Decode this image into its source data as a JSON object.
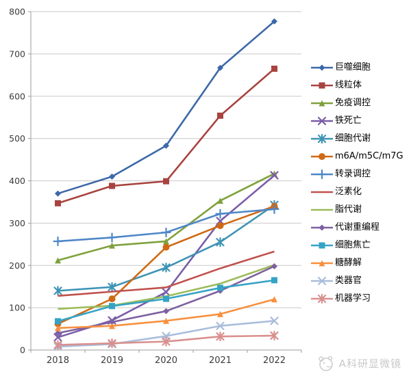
{
  "chart_data": {
    "type": "line",
    "categories": [
      "2018",
      "2019",
      "2020",
      "2021",
      "2022"
    ],
    "series": [
      {
        "name": "巨噬细胞",
        "values": [
          370,
          410,
          483,
          667,
          777
        ],
        "color": "#3C68A8",
        "marker": "diamond"
      },
      {
        "name": "线粒体",
        "values": [
          347,
          388,
          399,
          554,
          665
        ],
        "color": "#A8433F",
        "marker": "square"
      },
      {
        "name": "免疫调控",
        "values": [
          212,
          247,
          257,
          353,
          417
        ],
        "color": "#7FA13C",
        "marker": "triangle"
      },
      {
        "name": "铁死亡",
        "values": [
          30,
          70,
          137,
          305,
          413
        ],
        "color": "#7A5DA8",
        "marker": "x"
      },
      {
        "name": "细胞代谢",
        "values": [
          140,
          149,
          195,
          255,
          343
        ],
        "color": "#3E93B5",
        "marker": "asterisk"
      },
      {
        "name": "m6A/m5C/m7G",
        "values": [
          62,
          121,
          243,
          294,
          340
        ],
        "color": "#CF6A14",
        "marker": "circle"
      },
      {
        "name": "转录调控",
        "values": [
          257,
          266,
          278,
          322,
          333
        ],
        "color": "#4E87C8",
        "marker": "plus"
      },
      {
        "name": "泛素化",
        "values": [
          128,
          138,
          148,
          193,
          233
        ],
        "color": "#C0504D",
        "marker": "none"
      },
      {
        "name": "脂代谢",
        "values": [
          97,
          105,
          127,
          157,
          201
        ],
        "color": "#9BBB59",
        "marker": "none"
      },
      {
        "name": "代谢重编程",
        "values": [
          40,
          66,
          92,
          140,
          198
        ],
        "color": "#7D60A0",
        "marker": "diamond"
      },
      {
        "name": "细胞焦亡",
        "values": [
          68,
          104,
          121,
          147,
          165
        ],
        "color": "#35A3C6",
        "marker": "square"
      },
      {
        "name": "糖酵解",
        "values": [
          52,
          57,
          69,
          85,
          120
        ],
        "color": "#F7903E",
        "marker": "triangle"
      },
      {
        "name": "类器官",
        "values": [
          8,
          14,
          33,
          57,
          69
        ],
        "color": "#A9BDDB",
        "marker": "x"
      },
      {
        "name": "机器学习",
        "values": [
          12,
          16,
          20,
          32,
          34
        ],
        "color": "#D9908E",
        "marker": "asterisk"
      }
    ],
    "ylim": [
      0,
      800
    ],
    "yticks": [
      0,
      100,
      200,
      300,
      400,
      500,
      600,
      700,
      800
    ],
    "grid": true,
    "legend_position": "right",
    "title": "",
    "xlabel": "",
    "ylabel": ""
  },
  "style_colors": {
    "gridline": "#C9C9C9",
    "axis_line": "#9B9B9B",
    "tick_label": "#3A3A3A",
    "watermark": "#C9C9C9"
  },
  "watermark": {
    "text": "A科研显微镜",
    "logo": "panda-logo"
  }
}
